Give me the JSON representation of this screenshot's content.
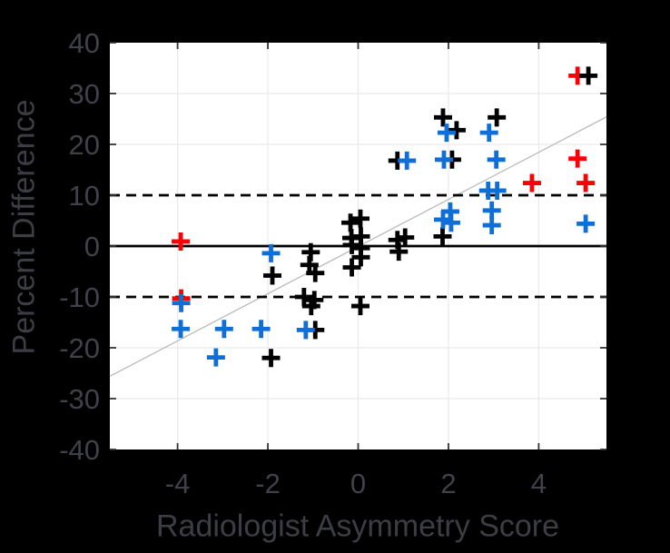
{
  "figure": {
    "background": "#000000",
    "plot_background": "#ffffff",
    "text_color": "#3d3d46",
    "tick_label_color": "#41414b",
    "grid_color": "#e9e9e9",
    "tick_mark_color": "#333333",
    "reference_line_color": "#000000",
    "trend_line_color": "#bbbbbb"
  },
  "chart_data": {
    "type": "scatter",
    "title": "",
    "xlabel": "Radiologist Asymmetry Score",
    "ylabel": "Percent Difference",
    "xlim": [
      -5.5,
      5.5
    ],
    "ylim": [
      -40,
      40
    ],
    "xticks": [
      -4,
      -2,
      0,
      2,
      4
    ],
    "yticks": [
      -40,
      -30,
      -20,
      -10,
      0,
      10,
      20,
      30,
      40
    ],
    "grid": true,
    "marker": "plus",
    "series": [
      {
        "name": "red-markers",
        "color": "#fb0006",
        "points": [
          [
            -3.93,
            0.9
          ],
          [
            -3.92,
            -10.3
          ],
          [
            4.86,
            33.5
          ],
          [
            4.86,
            17.2
          ],
          [
            3.85,
            12.4
          ],
          [
            5.04,
            12.4
          ]
        ]
      },
      {
        "name": "black-markers",
        "color": "#000000",
        "points": [
          [
            -0.17,
            4.6
          ],
          [
            0.05,
            5.4
          ],
          [
            -0.15,
            1.6
          ],
          [
            0.06,
            1.9
          ],
          [
            -0.14,
            0.2
          ],
          [
            0.06,
            -0.4
          ],
          [
            0.06,
            -2.2
          ],
          [
            -0.14,
            -4.2
          ],
          [
            0.87,
            1.2
          ],
          [
            1.04,
            1.7
          ],
          [
            0.9,
            -1.1
          ],
          [
            1.87,
            1.9
          ],
          [
            0.87,
            16.8
          ],
          [
            2.08,
            17.0
          ],
          [
            1.88,
            25.3
          ],
          [
            3.07,
            25.3
          ],
          [
            2.18,
            22.8
          ],
          [
            5.1,
            33.5
          ],
          [
            -1.05,
            -1.2
          ],
          [
            -1.9,
            -5.8
          ],
          [
            -1.08,
            -3.7
          ],
          [
            -0.95,
            -5.3
          ],
          [
            -1.2,
            -10.0
          ],
          [
            -0.97,
            -10.6
          ],
          [
            -1.04,
            -11.8
          ],
          [
            -0.95,
            -16.5
          ],
          [
            -1.93,
            -22.0
          ],
          [
            0.05,
            -11.8
          ]
        ]
      },
      {
        "name": "blue-markers",
        "color": "#0f6fd6",
        "points": [
          [
            1.08,
            16.8
          ],
          [
            1.9,
            17.0
          ],
          [
            3.06,
            17.0
          ],
          [
            1.96,
            22.3
          ],
          [
            2.9,
            22.3
          ],
          [
            2.88,
            10.9
          ],
          [
            3.08,
            10.9
          ],
          [
            2.04,
            6.8
          ],
          [
            1.88,
            5.2
          ],
          [
            2.06,
            4.6
          ],
          [
            2.96,
            7.0
          ],
          [
            2.96,
            4.1
          ],
          [
            5.04,
            4.4
          ],
          [
            -1.93,
            -1.4
          ],
          [
            -3.92,
            -11.2
          ],
          [
            -3.93,
            -16.3
          ],
          [
            -2.97,
            -16.3
          ],
          [
            -2.15,
            -16.3
          ],
          [
            -1.16,
            -16.5
          ],
          [
            -3.15,
            -21.9
          ]
        ]
      }
    ],
    "reference_lines": [
      {
        "y": 0,
        "style": "solid"
      },
      {
        "y": 10,
        "style": "dashed"
      },
      {
        "y": -10,
        "style": "dashed"
      }
    ],
    "trend_line": {
      "x1": -5.5,
      "y1": -25.6,
      "x2": 5.5,
      "y2": 25.4
    },
    "legend": null
  }
}
